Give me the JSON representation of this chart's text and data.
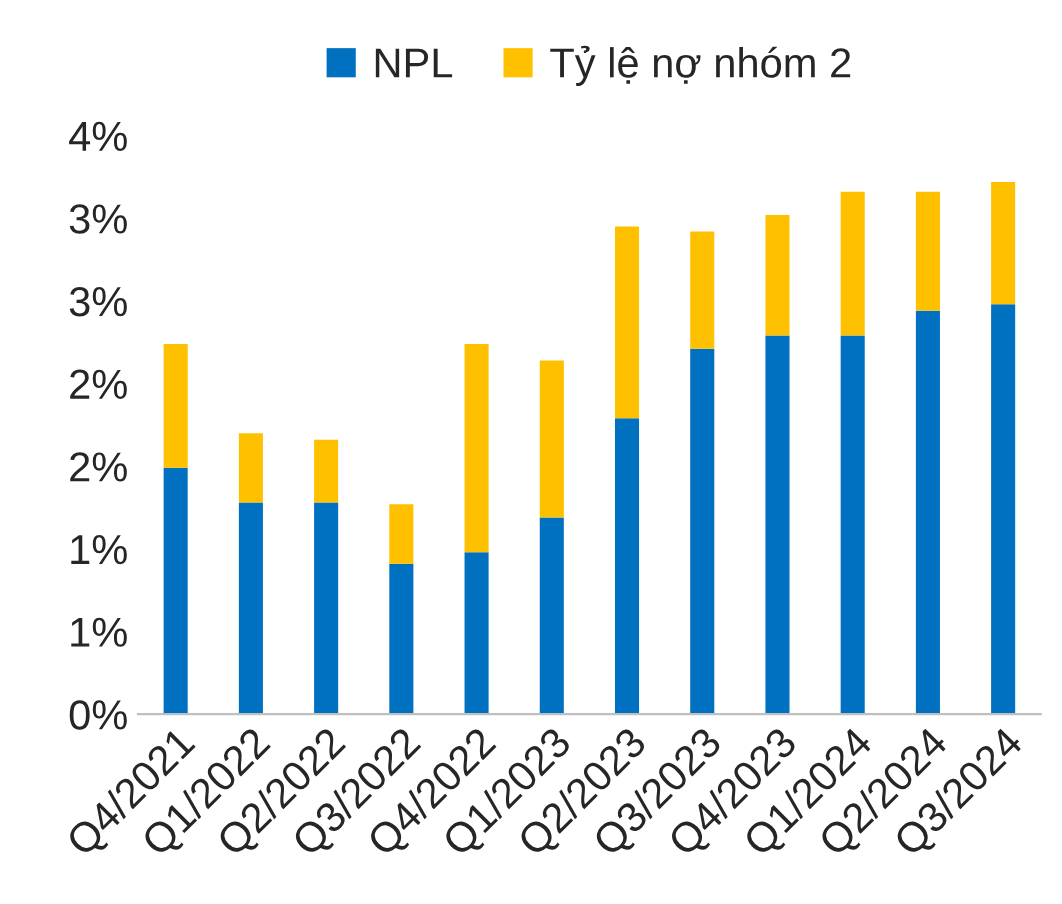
{
  "chart_data": {
    "type": "bar",
    "stacked": true,
    "legend": "top",
    "grid": false,
    "categories": [
      "Q4/2021",
      "Q1/2022",
      "Q2/2022",
      "Q3/2022",
      "Q4/2022",
      "Q1/2023",
      "Q2/2023",
      "Q3/2023",
      "Q4/2023",
      "Q1/2024",
      "Q2/2024",
      "Q3/2024"
    ],
    "series": [
      {
        "name": "NPL",
        "color": "#0070c0",
        "values": [
          1.49,
          1.28,
          1.28,
          0.91,
          0.98,
          1.19,
          1.79,
          2.21,
          2.29,
          2.29,
          2.44,
          2.48
        ]
      },
      {
        "name": "Tỷ lệ nợ nhóm 2",
        "color": "#ffc000",
        "values": [
          0.75,
          0.42,
          0.38,
          0.36,
          1.26,
          0.95,
          1.16,
          0.71,
          0.73,
          0.87,
          0.72,
          0.74
        ]
      }
    ],
    "ylim": [
      0,
      3.5
    ],
    "yticks": [
      {
        "value": 0,
        "label": "0%"
      },
      {
        "value": 0.5,
        "label": "1%"
      },
      {
        "value": 1,
        "label": "1%"
      },
      {
        "value": 1.5,
        "label": "2%"
      },
      {
        "value": 2,
        "label": "2%"
      },
      {
        "value": 2.5,
        "label": "3%"
      },
      {
        "value": 3,
        "label": "3%"
      },
      {
        "value": 3.5,
        "label": "4%"
      }
    ]
  }
}
